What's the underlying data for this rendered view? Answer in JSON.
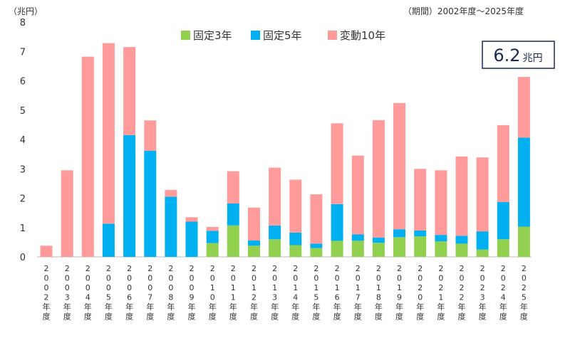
{
  "chart_data": {
    "type": "bar",
    "stacked": true,
    "y_unit_label": "（兆円）",
    "period_note": "（期間）2002年度～2025年度",
    "categories": [
      "2002年度",
      "2003年度",
      "2004年度",
      "2005年度",
      "2006年度",
      "2007年度",
      "2008年度",
      "2009年度",
      "2010年度",
      "2011年度",
      "2012年度",
      "2013年度",
      "2014年度",
      "2015年度",
      "2016年度",
      "2017年度",
      "2018年度",
      "2019年度",
      "2020年度",
      "2021年度",
      "2022年度",
      "2023年度",
      "2024年度",
      "2025年度"
    ],
    "series": [
      {
        "name": "固定3年",
        "color": "#92d050",
        "values": [
          0,
          0,
          0,
          0,
          0,
          0,
          0,
          0,
          0.47,
          1.07,
          0.38,
          0.6,
          0.4,
          0.3,
          0.55,
          0.55,
          0.48,
          0.67,
          0.7,
          0.53,
          0.45,
          0.25,
          0.6,
          1.03
        ]
      },
      {
        "name": "固定5年",
        "color": "#00b0f0",
        "values": [
          0,
          0,
          0,
          1.13,
          4.15,
          3.62,
          2.05,
          1.2,
          0.42,
          0.75,
          0.18,
          0.47,
          0.43,
          0.15,
          1.25,
          0.22,
          0.18,
          0.27,
          0.2,
          0.22,
          0.27,
          0.62,
          1.27,
          3.03
        ]
      },
      {
        "name": "変動10年",
        "color": "#ff9b9b",
        "values": [
          0.38,
          2.95,
          6.82,
          6.15,
          3.0,
          1.03,
          0.23,
          0.15,
          0.13,
          1.1,
          1.12,
          1.97,
          1.8,
          1.68,
          2.75,
          2.68,
          4.0,
          4.3,
          2.1,
          2.2,
          2.7,
          2.52,
          2.62,
          2.07
        ]
      }
    ],
    "ylim": [
      0,
      8
    ],
    "yticks": [
      0,
      1,
      2,
      3,
      4,
      5,
      6,
      7,
      8
    ],
    "legend_position": "top-center",
    "grid": false,
    "annotation": {
      "value": "6.2",
      "unit": "兆円"
    }
  }
}
